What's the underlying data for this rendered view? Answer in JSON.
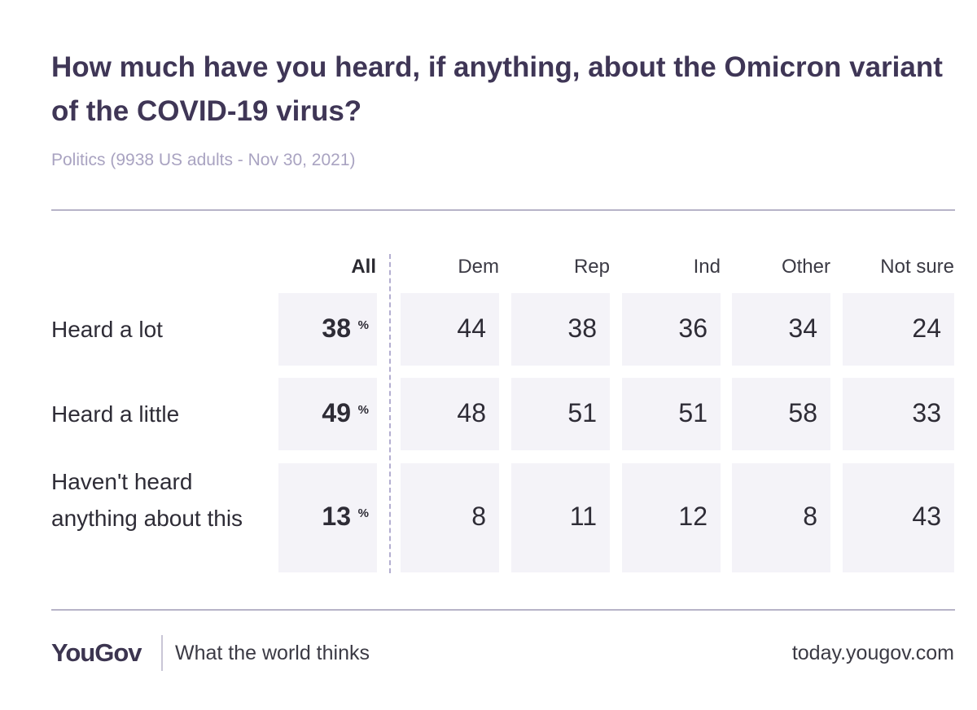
{
  "header": {
    "title": "How much have you heard, if anything, about the Omicron variant of the COVID-19 virus?",
    "subtitle": "Politics (9938 US adults - Nov 30, 2021)"
  },
  "chart_data": {
    "type": "table",
    "columns": [
      "All",
      "Dem",
      "Rep",
      "Ind",
      "Other",
      "Not sure"
    ],
    "rows": [
      {
        "label": "Heard a lot",
        "all": "38",
        "values": [
          "44",
          "38",
          "36",
          "34",
          "24"
        ]
      },
      {
        "label": "Heard a little",
        "all": "49",
        "values": [
          "48",
          "51",
          "51",
          "58",
          "33"
        ]
      },
      {
        "label": "Haven't heard anything about this",
        "all": "13",
        "values": [
          "8",
          "11",
          "12",
          "8",
          "43"
        ]
      }
    ],
    "unit_symbol": "%"
  },
  "footer": {
    "logo": "YouGov",
    "tagline": "What the world thinks",
    "site": "today.yougov.com"
  },
  "colors": {
    "title": "#3f3656",
    "subtitle": "#a9a3c1",
    "cell_bg": "#f4f3f8",
    "divider": "#b3aed0"
  }
}
